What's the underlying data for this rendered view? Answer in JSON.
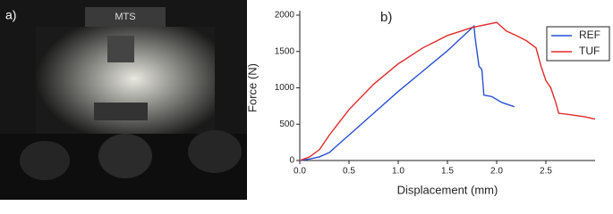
{
  "photo": {
    "label": "a)",
    "brand": "MTS"
  },
  "chart_data": {
    "type": "line",
    "annotation": "b)",
    "x_label": "Displacement (mm)",
    "y_label": "Force (N)",
    "xlim": [
      0,
      3
    ],
    "ylim": [
      0,
      2000
    ],
    "xticks": [
      {
        "value": 0,
        "label": "0.0"
      },
      {
        "value": 0.5,
        "label": "0.5"
      },
      {
        "value": 1,
        "label": "1.0"
      },
      {
        "value": 1.5,
        "label": "1.5"
      },
      {
        "value": 2,
        "label": "2.0"
      },
      {
        "value": 2.5,
        "label": "2.5"
      }
    ],
    "yticks": [
      0,
      500,
      1000,
      1500,
      2000
    ],
    "legend": "upper-right",
    "series": [
      {
        "name": "REF",
        "color": "#2a4fd0",
        "x": [
          0,
          0.1,
          0.2,
          0.3,
          0.5,
          0.75,
          1.0,
          1.25,
          1.5,
          1.77,
          1.78,
          1.8,
          1.82,
          1.85,
          1.87,
          1.95,
          2.05,
          2.18
        ],
        "values": [
          0,
          20,
          50,
          110,
          350,
          650,
          950,
          1230,
          1510,
          1850,
          1700,
          1500,
          1300,
          1250,
          900,
          880,
          800,
          740
        ]
      },
      {
        "name": "TUF",
        "color": "#e02a2a",
        "x": [
          0,
          0.1,
          0.2,
          0.3,
          0.5,
          0.75,
          1.0,
          1.25,
          1.5,
          1.75,
          2.0,
          2.1,
          2.2,
          2.3,
          2.4,
          2.45,
          2.5,
          2.55,
          2.6,
          2.63,
          2.75,
          2.9,
          3.0
        ],
        "values": [
          0,
          50,
          150,
          350,
          700,
          1050,
          1330,
          1550,
          1720,
          1830,
          1900,
          1780,
          1720,
          1650,
          1550,
          1300,
          1100,
          1000,
          800,
          650,
          630,
          600,
          570
        ]
      }
    ]
  }
}
